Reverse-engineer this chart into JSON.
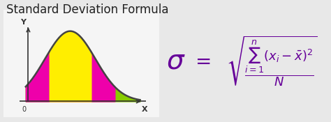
{
  "title": "Standard Deviation Formula",
  "title_fontsize": 12,
  "title_color": "#222222",
  "bg_color": "#e8e8e8",
  "panel_bg": "#f5f5f5",
  "curve_color": "#444444",
  "fill_green": "#88cc00",
  "fill_magenta": "#ee00aa",
  "fill_yellow": "#ffee00",
  "formula_color": "#660099",
  "axis_label_color": "#333333",
  "curve_lw": 1.8
}
